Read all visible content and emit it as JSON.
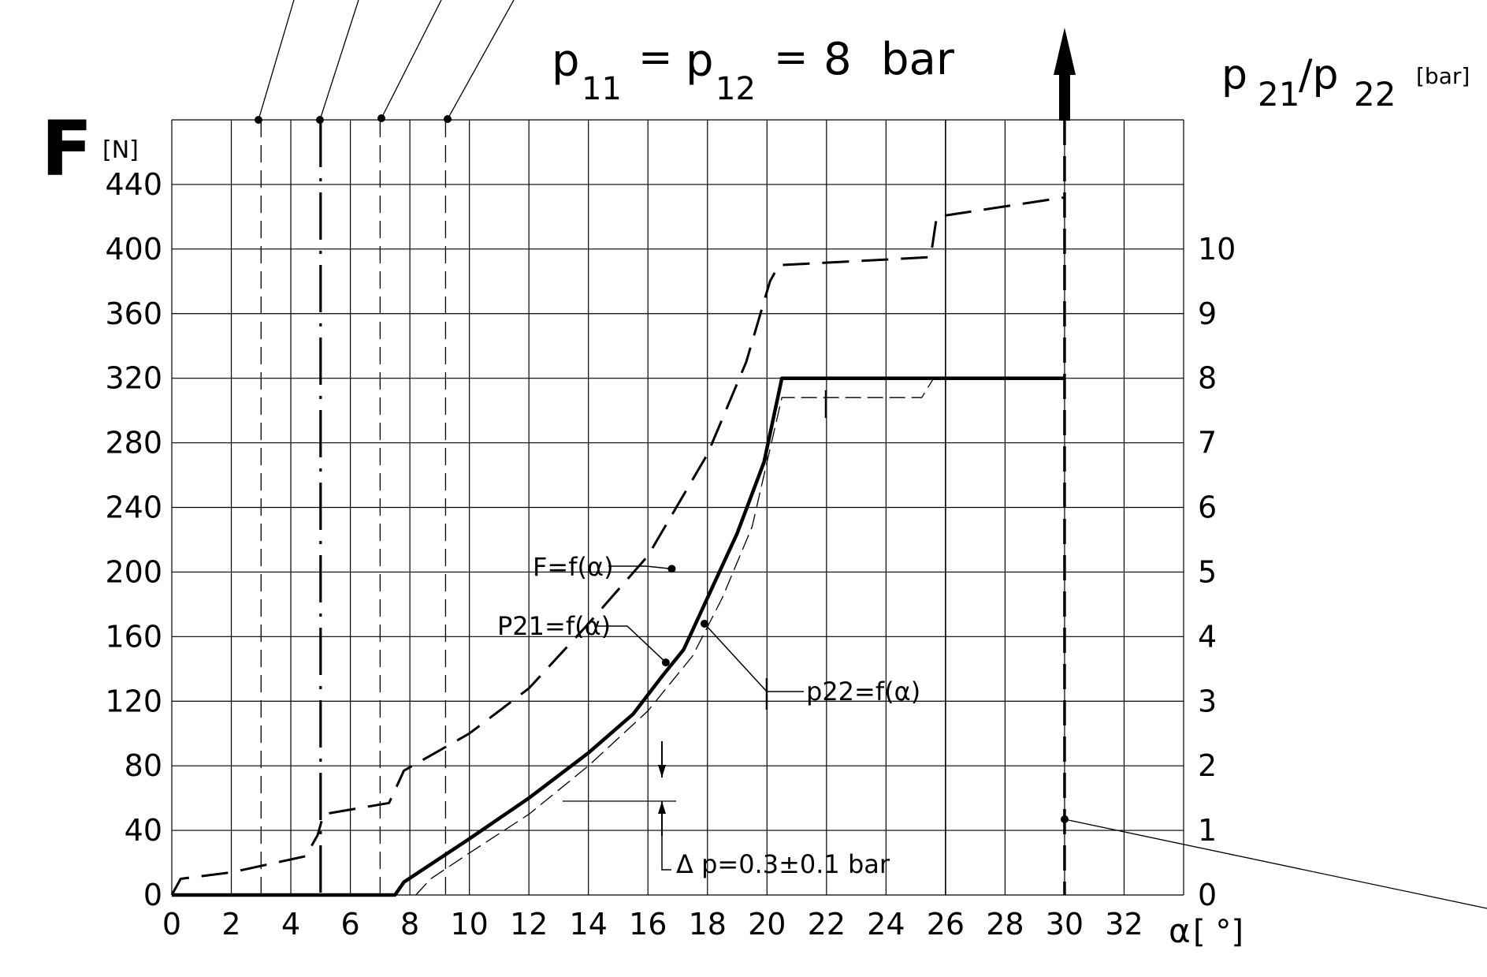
{
  "chart_data": {
    "type": "line",
    "title": "p₁₁ = p₁₂ = 8 bar",
    "title_parts": {
      "p1": "p",
      "s1": "11",
      "eq1": "=",
      "p2": "p",
      "s2": "12",
      "eq2": "=",
      "val": "8",
      "unit": "bar"
    },
    "ylabel_main": "F",
    "ylabel_unit": "[N]",
    "y2label": {
      "p1": "p",
      "s1": "21",
      "slash": "/p",
      "s2": "22",
      "unit": "[bar]"
    },
    "xlabel": {
      "sym": "α",
      "unit": "[  °]"
    },
    "xlim": [
      0,
      34
    ],
    "ylim": [
      0,
      480
    ],
    "y2lim": [
      0,
      12
    ],
    "x_ticks": [
      0,
      2,
      4,
      6,
      8,
      10,
      12,
      14,
      16,
      18,
      20,
      22,
      24,
      26,
      28,
      30,
      32
    ],
    "y_ticks": [
      0,
      40,
      80,
      120,
      160,
      200,
      240,
      280,
      320,
      360,
      400,
      440
    ],
    "y2_ticks": [
      0,
      1,
      2,
      3,
      4,
      5,
      6,
      7,
      8,
      9,
      10
    ],
    "grid": true,
    "series": [
      {
        "label": "F=f(α)",
        "axis": "left",
        "style": "dashed-thick",
        "x": [
          0,
          0.3,
          2,
          4.5,
          4.9,
          5.1,
          7.3,
          7.8,
          10,
          12,
          14,
          16,
          18,
          19.3,
          20.1,
          20.4,
          25.5,
          25.7,
          30
        ],
        "y": [
          0,
          10,
          14,
          24,
          37,
          50,
          57,
          77,
          100,
          128,
          168,
          210,
          273,
          330,
          380,
          390,
          395,
          420,
          432
        ]
      },
      {
        "label": "P21=f(α)",
        "axis": "right",
        "style": "solid-thick",
        "x": [
          0,
          7.5,
          7.8,
          10,
          12,
          14,
          15.5,
          16.5,
          17.2,
          18,
          19,
          19.9,
          20.5,
          30
        ],
        "y": [
          0,
          0,
          0.2,
          0.87,
          1.5,
          2.2,
          2.8,
          3.4,
          3.8,
          4.6,
          5.6,
          6.7,
          8,
          8
        ]
      },
      {
        "label": "p22=f(α)",
        "axis": "right",
        "style": "dashed-thin",
        "x": [
          8.2,
          8.7,
          10,
          12,
          14,
          16,
          17.5,
          18.5,
          19.5,
          20.5,
          25.2,
          25.6
        ],
        "y": [
          0,
          0.25,
          0.65,
          1.25,
          2,
          2.85,
          3.7,
          4.6,
          5.7,
          7.7,
          7.7,
          8
        ]
      }
    ],
    "vertical_markers": [
      {
        "x": 3,
        "style": "dashed-thin"
      },
      {
        "x": 5,
        "style": "dash-dot-thick"
      },
      {
        "x": 7,
        "style": "dashed-thin"
      },
      {
        "x": 9.2,
        "style": "dashed-thin"
      },
      {
        "x": 30,
        "style": "dashed-thick"
      },
      {
        "x": 26,
        "style": "solid-thin"
      }
    ],
    "annotations": {
      "f_label": "F=f(α)",
      "p21_label": "P21=f(α)",
      "p22_label": "p22=f(α)",
      "delta_label": "Δ p=0.3±0.1  bar"
    }
  }
}
